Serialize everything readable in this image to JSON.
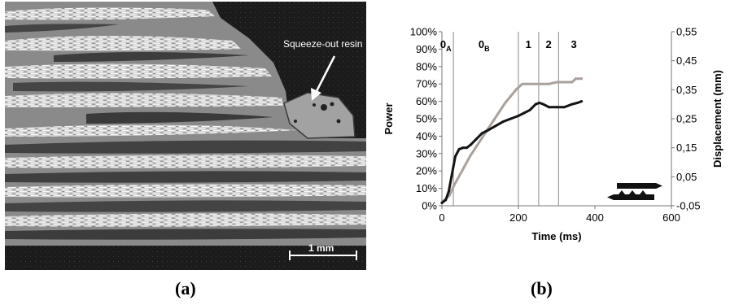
{
  "figure": {
    "panel_a_label": "(a)",
    "panel_b_label": "(b)"
  },
  "micrograph": {
    "annotation": "Squeeze-out resin",
    "scale_bar_label": "1 mm"
  },
  "chart_data": {
    "type": "line",
    "xlabel": "Time (ms)",
    "ylabel_left": "Power",
    "ylabel_right": "Displacement (mm)",
    "xlim": [
      0,
      600
    ],
    "ylim_left": [
      0,
      100
    ],
    "ylim_right": [
      -0.05,
      0.55
    ],
    "x_ticks": [
      "0",
      "200",
      "400",
      "600"
    ],
    "y_left_ticks": [
      "0%",
      "10%",
      "20%",
      "30%",
      "40%",
      "50%",
      "60%",
      "70%",
      "80%",
      "90%",
      "100%"
    ],
    "y_right_ticks": [
      "-0,05",
      "0,05",
      "0,15",
      "0,25",
      "0,35",
      "0,45",
      "0,55"
    ],
    "phase_lines": [
      30,
      200,
      253,
      305
    ],
    "phase_labels": [
      {
        "base": "0",
        "sub": "A",
        "x": 10
      },
      {
        "base": "0",
        "sub": "B",
        "x": 110
      },
      {
        "base": "1",
        "sub": "",
        "x": 226
      },
      {
        "base": "2",
        "sub": "",
        "x": 279
      },
      {
        "base": "3",
        "sub": "",
        "x": 345
      }
    ],
    "grid": false,
    "series": [
      {
        "axis": "left",
        "color": "#a9a19c",
        "unit": "percent",
        "x": [
          0,
          10,
          20,
          30,
          45,
          60,
          75,
          90,
          105,
          120,
          135,
          150,
          165,
          180,
          195,
          205,
          210,
          220,
          240,
          260,
          280,
          300,
          320,
          340,
          350,
          365
        ],
        "y": [
          2,
          4,
          6,
          11,
          17,
          23,
          29,
          34,
          39,
          44,
          49,
          54,
          59,
          63,
          67,
          69,
          70,
          70,
          70,
          70,
          70,
          71,
          71,
          71,
          73,
          73
        ]
      },
      {
        "axis": "right",
        "color": "#141414",
        "unit": "mm",
        "x": [
          0,
          10,
          18,
          25,
          35,
          45,
          55,
          65,
          75,
          90,
          105,
          120,
          140,
          160,
          180,
          200,
          215,
          230,
          245,
          255,
          265,
          280,
          300,
          320,
          340,
          355,
          365
        ],
        "y": [
          -0.04,
          -0.03,
          0.0,
          0.05,
          0.12,
          0.145,
          0.15,
          0.15,
          0.16,
          0.18,
          0.2,
          0.21,
          0.225,
          0.24,
          0.25,
          0.26,
          0.27,
          0.28,
          0.3,
          0.305,
          0.3,
          0.29,
          0.29,
          0.29,
          0.3,
          0.305,
          0.31
        ]
      }
    ]
  }
}
